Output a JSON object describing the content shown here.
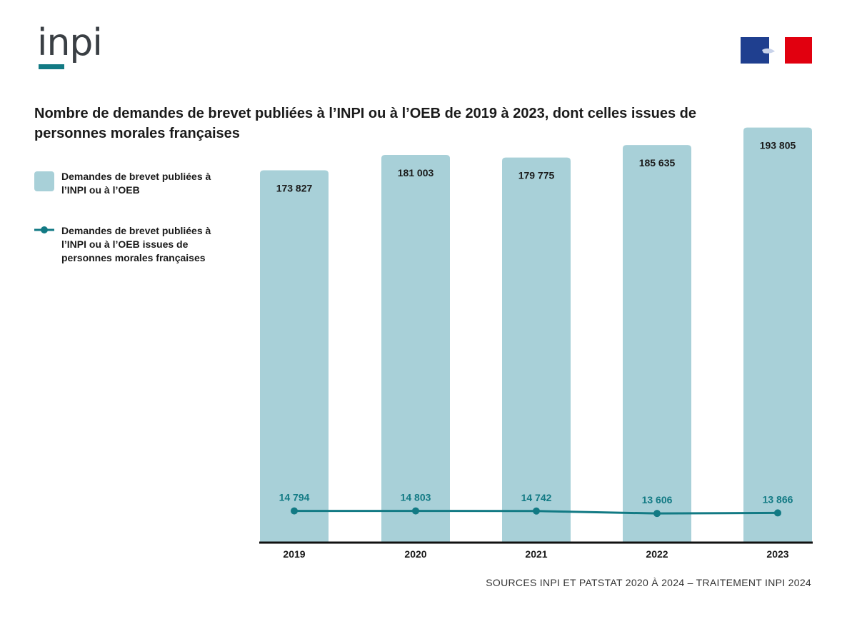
{
  "logo": {
    "text": "inpi"
  },
  "title": "Nombre de demandes de brevet publiées à l’INPI ou à l’OEB de 2019 à 2023, dont celles issues de personnes morales françaises",
  "legend": {
    "bar_label": "Demandes de brevet publiées à l’INPI ou à l’OEB",
    "line_label": "Demandes de brevet publiées à l’INPI ou à l’OEB issues de personnes morales françaises"
  },
  "colors": {
    "bar": "#a8d0d8",
    "line": "#127a84",
    "axis": "#111111",
    "logo_accent": "#127a84"
  },
  "chart_data": {
    "type": "bar",
    "categories": [
      "2019",
      "2020",
      "2021",
      "2022",
      "2023"
    ],
    "series": [
      {
        "name": "Demandes de brevet publiées à l’INPI ou à l’OEB",
        "type": "bar",
        "values": [
          173827,
          181003,
          179775,
          185635,
          193805
        ],
        "labels": [
          "173 827",
          "181 003",
          "179 775",
          "185 635",
          "193 805"
        ]
      },
      {
        "name": "Demandes de brevet publiées à l’INPI ou à l’OEB issues de personnes morales françaises",
        "type": "line",
        "values": [
          14794,
          14803,
          14742,
          13606,
          13866
        ],
        "labels": [
          "14 794",
          "14 803",
          "14 742",
          "13 606",
          "13 866"
        ]
      }
    ],
    "ylim": [
      0,
      200000
    ],
    "grid": false
  },
  "footer": {
    "source": "SOURCES INPI ET PATSTAT 2020 À 2024 – TRAITEMENT INPI 2024"
  }
}
